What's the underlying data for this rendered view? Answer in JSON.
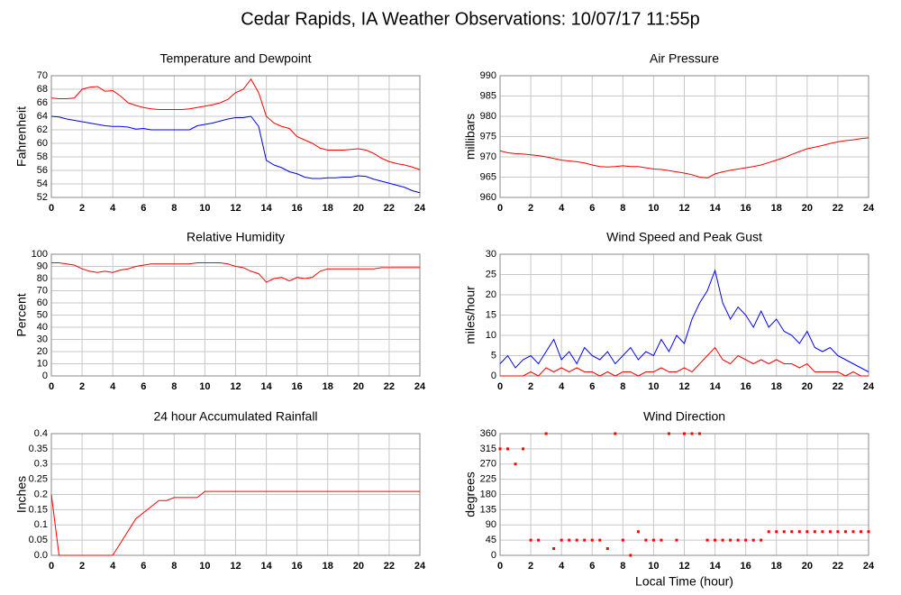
{
  "title": "Cedar Rapids, IA Weather Observations: 10/07/17 11:55p",
  "chart_data": [
    {
      "type": "line",
      "title": "Temperature and Dewpoint",
      "ylabel": "Fahrenheit",
      "x": [
        0,
        0.5,
        1,
        1.5,
        2,
        2.5,
        3,
        3.5,
        4,
        4.5,
        5,
        5.5,
        6,
        6.5,
        7,
        7.5,
        8,
        8.5,
        9,
        9.5,
        10,
        10.5,
        11,
        11.5,
        12,
        12.5,
        13,
        13.5,
        14,
        14.5,
        15,
        15.5,
        16,
        16.5,
        17,
        17.5,
        18,
        18.5,
        19,
        19.5,
        20,
        20.5,
        21,
        21.5,
        22,
        22.5,
        23,
        23.5,
        24
      ],
      "series": [
        {
          "color": "#ff0000",
          "values": [
            66.7,
            66.6,
            66.6,
            66.7,
            68,
            68.3,
            68.4,
            67.7,
            67.8,
            67,
            66,
            65.6,
            65.3,
            65.1,
            65,
            65,
            65,
            65,
            65.1,
            65.3,
            65.5,
            65.7,
            66,
            66.5,
            67.5,
            68,
            69.5,
            67.5,
            64,
            63,
            62.5,
            62.2,
            61,
            60.5,
            60,
            59.3,
            59,
            59,
            59,
            59.1,
            59.2,
            59,
            58.5,
            57.8,
            57.3,
            57,
            56.8,
            56.5,
            56.1
          ]
        },
        {
          "color": "#0000ff",
          "values": [
            64,
            63.9,
            63.6,
            63.4,
            63.2,
            63,
            62.8,
            62.6,
            62.5,
            62.5,
            62.4,
            62.1,
            62.2,
            62,
            62,
            62,
            62,
            62,
            62,
            62.6,
            62.8,
            63,
            63.3,
            63.6,
            63.8,
            63.8,
            64,
            62.5,
            57.5,
            56.8,
            56.4,
            55.8,
            55.5,
            55,
            54.8,
            54.8,
            54.9,
            54.9,
            55,
            55,
            55.2,
            55.1,
            54.7,
            54.4,
            54.1,
            53.8,
            53.5,
            53,
            52.7
          ]
        }
      ],
      "xlim": [
        0,
        24
      ],
      "xticks": [
        0,
        2,
        4,
        6,
        8,
        10,
        12,
        14,
        16,
        18,
        20,
        22,
        24
      ],
      "ylim": [
        52,
        70
      ],
      "yticks": [
        52,
        54,
        56,
        58,
        60,
        62,
        64,
        66,
        68,
        70
      ],
      "grid": true
    },
    {
      "type": "line",
      "title": "Air Pressure",
      "ylabel": "millibars",
      "x": [
        0,
        0.5,
        1,
        1.5,
        2,
        2.5,
        3,
        3.5,
        4,
        4.5,
        5,
        5.5,
        6,
        6.5,
        7,
        7.5,
        8,
        8.5,
        9,
        9.5,
        10,
        10.5,
        11,
        11.5,
        12,
        12.5,
        13,
        13.5,
        14,
        14.5,
        15,
        15.5,
        16,
        16.5,
        17,
        17.5,
        18,
        18.5,
        19,
        19.5,
        20,
        20.5,
        21,
        21.5,
        22,
        22.5,
        23,
        23.5,
        24
      ],
      "series": [
        {
          "color": "#ff0000",
          "values": [
            971.5,
            971,
            970.8,
            970.7,
            970.5,
            970.3,
            970,
            969.6,
            969.2,
            969,
            968.8,
            968.5,
            968,
            967.6,
            967.5,
            967.6,
            967.8,
            967.6,
            967.6,
            967.3,
            967,
            966.9,
            966.6,
            966.3,
            966,
            965.6,
            965,
            964.8,
            965.8,
            966.3,
            966.7,
            967,
            967.3,
            967.6,
            968,
            968.6,
            969.2,
            969.8,
            970.6,
            971.3,
            972,
            972.4,
            972.8,
            973.3,
            973.7,
            974,
            974.2,
            974.5,
            974.7
          ]
        }
      ],
      "xlim": [
        0,
        24
      ],
      "xticks": [
        0,
        2,
        4,
        6,
        8,
        10,
        12,
        14,
        16,
        18,
        20,
        22,
        24
      ],
      "ylim": [
        960,
        990
      ],
      "yticks": [
        960,
        965,
        970,
        975,
        980,
        985,
        990
      ],
      "grid": true
    },
    {
      "type": "line",
      "title": "Relative Humidity",
      "ylabel": "Percent",
      "x": [
        0,
        0.5,
        1,
        1.5,
        2,
        2.5,
        3,
        3.5,
        4,
        4.5,
        5,
        5.5,
        6,
        6.5,
        7,
        7.5,
        8,
        8.5,
        9,
        9.5,
        10,
        10.5,
        11,
        11.5,
        12,
        12.5,
        13,
        13.5,
        14,
        14.5,
        15,
        15.5,
        16,
        16.5,
        17,
        17.5,
        18,
        18.5,
        19,
        19.5,
        20,
        20.5,
        21,
        21.5,
        22,
        22.5,
        23,
        23.5,
        24
      ],
      "series": [
        {
          "color": "#ff0000",
          "values": [
            93,
            93,
            92,
            91,
            88,
            86,
            85,
            86,
            85,
            87,
            88,
            90,
            91,
            92,
            92,
            92,
            92,
            92,
            92,
            93,
            93,
            93,
            93,
            92,
            90,
            89,
            86,
            84,
            77,
            80,
            81,
            78,
            81,
            80,
            81,
            86,
            88,
            88,
            88,
            88,
            88,
            88,
            88,
            89,
            89,
            89,
            89,
            89,
            89
          ]
        }
      ],
      "xlim": [
        0,
        24
      ],
      "xticks": [
        0,
        2,
        4,
        6,
        8,
        10,
        12,
        14,
        16,
        18,
        20,
        22,
        24
      ],
      "ylim": [
        0,
        100
      ],
      "yticks": [
        0,
        10,
        20,
        30,
        40,
        50,
        60,
        70,
        80,
        90,
        100
      ],
      "grid": true
    },
    {
      "type": "line",
      "title": "Wind Speed and Peak Gust",
      "ylabel": "miles/hour",
      "x": [
        0,
        0.5,
        1,
        1.5,
        2,
        2.5,
        3,
        3.5,
        4,
        4.5,
        5,
        5.5,
        6,
        6.5,
        7,
        7.5,
        8,
        8.5,
        9,
        9.5,
        10,
        10.5,
        11,
        11.5,
        12,
        12.5,
        13,
        13.5,
        14,
        14.5,
        15,
        15.5,
        16,
        16.5,
        17,
        17.5,
        18,
        18.5,
        19,
        19.5,
        20,
        20.5,
        21,
        21.5,
        22,
        22.5,
        23,
        23.5,
        24
      ],
      "series": [
        {
          "color": "#0000ff",
          "values": [
            3,
            5,
            2,
            4,
            5,
            3,
            6,
            9,
            4,
            6,
            3,
            7,
            5,
            4,
            6,
            3,
            5,
            7,
            4,
            6,
            5,
            9,
            6,
            10,
            8,
            14,
            18,
            21,
            26,
            18,
            14,
            17,
            15,
            12,
            16,
            12,
            14,
            11,
            10,
            8,
            11,
            7,
            6,
            7,
            5,
            4,
            3,
            2,
            1
          ]
        },
        {
          "color": "#ff0000",
          "values": [
            0,
            0,
            0,
            0,
            1,
            0,
            2,
            1,
            2,
            1,
            2,
            1,
            1,
            0,
            1,
            0,
            1,
            1,
            0,
            1,
            1,
            2,
            1,
            1,
            2,
            1,
            3,
            5,
            7,
            4,
            3,
            5,
            4,
            3,
            4,
            3,
            4,
            3,
            3,
            2,
            3,
            1,
            1,
            1,
            1,
            0,
            1,
            0,
            0
          ]
        }
      ],
      "xlim": [
        0,
        24
      ],
      "xticks": [
        0,
        2,
        4,
        6,
        8,
        10,
        12,
        14,
        16,
        18,
        20,
        22,
        24
      ],
      "ylim": [
        0,
        30
      ],
      "yticks": [
        0,
        5,
        10,
        15,
        20,
        25,
        30
      ],
      "grid": true
    },
    {
      "type": "line",
      "title": "24 hour Accumulated Rainfall",
      "ylabel": "Inches",
      "x": [
        0,
        0.5,
        1,
        1.5,
        2,
        2.5,
        3,
        3.5,
        4,
        4.5,
        5,
        5.5,
        6,
        6.5,
        7,
        7.5,
        8,
        8.5,
        9,
        9.5,
        10,
        10.5,
        11,
        11.5,
        12,
        12.5,
        13,
        13.5,
        14,
        14.5,
        15,
        15.5,
        16,
        16.5,
        17,
        17.5,
        18,
        18.5,
        19,
        19.5,
        20,
        20.5,
        21,
        21.5,
        22,
        22.5,
        23,
        23.5,
        24
      ],
      "series": [
        {
          "color": "#ff0000",
          "values": [
            0.2,
            0,
            0,
            0,
            0,
            0,
            0,
            0,
            0,
            0.04,
            0.08,
            0.12,
            0.14,
            0.16,
            0.18,
            0.18,
            0.19,
            0.19,
            0.19,
            0.19,
            0.21,
            0.21,
            0.21,
            0.21,
            0.21,
            0.21,
            0.21,
            0.21,
            0.21,
            0.21,
            0.21,
            0.21,
            0.21,
            0.21,
            0.21,
            0.21,
            0.21,
            0.21,
            0.21,
            0.21,
            0.21,
            0.21,
            0.21,
            0.21,
            0.21,
            0.21,
            0.21,
            0.21,
            0.21
          ]
        }
      ],
      "xlim": [
        0,
        24
      ],
      "xticks": [
        0,
        2,
        4,
        6,
        8,
        10,
        12,
        14,
        16,
        18,
        20,
        22,
        24
      ],
      "ylim": [
        0,
        0.4
      ],
      "yticks": [
        {
          "value": 0,
          "label": "0.0"
        },
        0.05,
        0.1,
        0.15,
        0.2,
        0.25,
        0.3,
        0.35,
        0.4
      ],
      "grid": true
    },
    {
      "type": "scatter",
      "title": "Wind Direction",
      "ylabel": "degrees",
      "xlabel": "Local Time (hour)",
      "x": [
        0,
        0.5,
        1,
        1.5,
        2,
        2.5,
        3,
        3.5,
        4,
        4.5,
        5,
        5.5,
        6,
        6.5,
        7,
        7.5,
        8,
        8.5,
        9,
        9.5,
        10,
        10.5,
        11,
        11.5,
        12,
        12.5,
        13,
        13.5,
        14,
        14.5,
        15,
        15.5,
        16,
        16.5,
        17,
        17.5,
        18,
        18.5,
        19,
        19.5,
        20,
        20.5,
        21,
        21.5,
        22,
        22.5,
        23,
        23.5,
        24
      ],
      "series": [
        {
          "color": "#ff0000",
          "values": [
            315,
            315,
            270,
            315,
            45,
            45,
            360,
            20,
            45,
            45,
            45,
            45,
            45,
            45,
            20,
            360,
            45,
            0,
            70,
            45,
            45,
            45,
            360,
            45,
            360,
            360,
            360,
            45,
            45,
            45,
            45,
            45,
            45,
            45,
            45,
            70,
            70,
            70,
            70,
            70,
            70,
            70,
            70,
            70,
            70,
            70,
            70,
            70,
            70
          ]
        }
      ],
      "xlim": [
        0,
        24
      ],
      "xticks": [
        0,
        2,
        4,
        6,
        8,
        10,
        12,
        14,
        16,
        18,
        20,
        22,
        24
      ],
      "ylim": [
        0,
        360
      ],
      "yticks": [
        0,
        45,
        90,
        135,
        180,
        225,
        270,
        315,
        360
      ],
      "grid": true
    }
  ]
}
